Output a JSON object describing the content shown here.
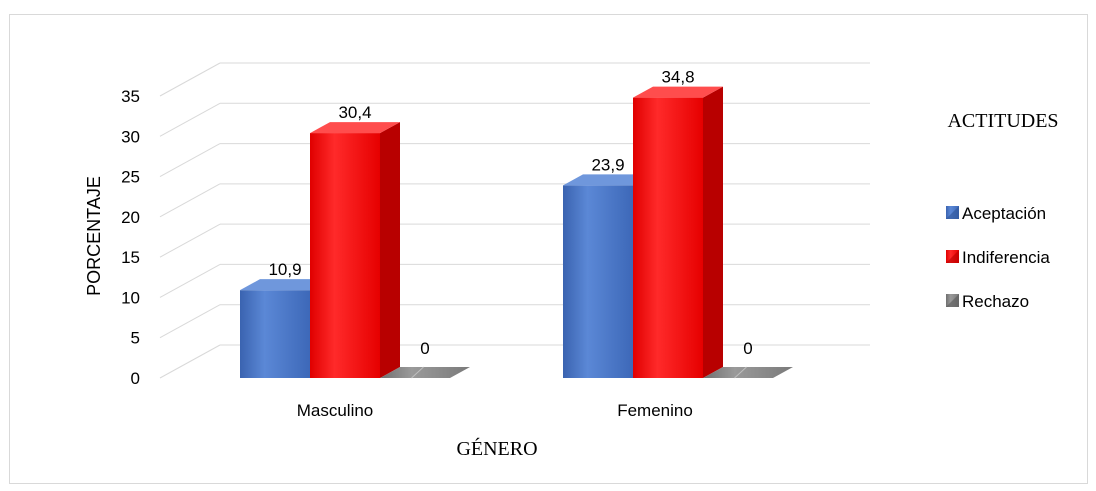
{
  "chart_data": {
    "type": "bar",
    "categories": [
      "Masculino",
      "Femenino"
    ],
    "series": [
      {
        "name": "Aceptación",
        "values": [
          10.9,
          23.9
        ],
        "labels": [
          "10,9",
          "23,9"
        ],
        "color": "#4472C4"
      },
      {
        "name": "Indiferencia",
        "values": [
          30.4,
          34.8
        ],
        "labels": [
          "30,4",
          "34,8"
        ],
        "color": "#FF0000"
      },
      {
        "name": "Rechazo",
        "values": [
          0,
          0
        ],
        "labels": [
          "0",
          "0"
        ],
        "color": "#808080"
      }
    ],
    "xlabel": "GÉNERO",
    "ylabel": "PORCENTAJE",
    "ylim": [
      0,
      35
    ],
    "yticks": [
      0,
      5,
      10,
      15,
      20,
      25,
      30,
      35
    ],
    "legend_title": "ACTITUDES",
    "legend_position": "right",
    "grid": true,
    "style": "3d-column"
  }
}
